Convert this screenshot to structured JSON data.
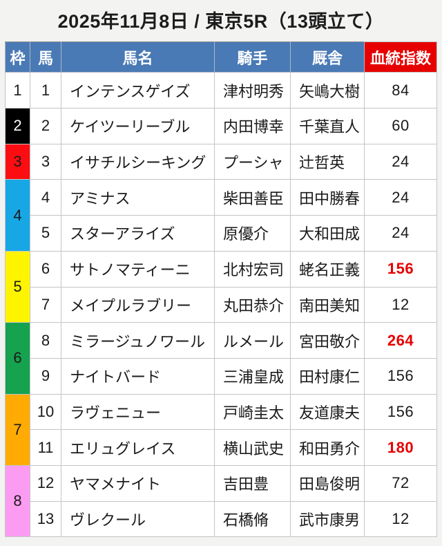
{
  "title": "2025年11月8日 / 東京5R（13頭立て）",
  "colors": {
    "page_background": "#F3F3F2",
    "header_blue": "#4A7AB5",
    "header_red": "#E60000",
    "index_column_yellow": "#FAFA8C",
    "index_highlight_red": "#E60000",
    "text_black": "#1A1A1A"
  },
  "table": {
    "headers": {
      "frame": "枠",
      "horse": "馬",
      "name": "馬名",
      "jockey": "騎手",
      "stable": "厩舎",
      "index": "血統指数"
    },
    "frames": [
      {
        "no": "1",
        "color": "#FFFFFF",
        "text_color": "#1A1A1A"
      },
      {
        "no": "2",
        "color": "#000000",
        "text_color": "#FFFFFF"
      },
      {
        "no": "3",
        "color": "#FC0D12",
        "text_color": "#1A1A1A"
      },
      {
        "no": "4",
        "color": "#17A7E5",
        "text_color": "#1A1A1A"
      },
      {
        "no": "5",
        "color": "#FEF400",
        "text_color": "#1A1A1A"
      },
      {
        "no": "6",
        "color": "#17A24F",
        "text_color": "#1A1A1A"
      },
      {
        "no": "7",
        "color": "#FFAB04",
        "text_color": "#1A1A1A"
      },
      {
        "no": "8",
        "color": "#FB9CF2",
        "text_color": "#1A1A1A"
      }
    ],
    "rows": [
      {
        "horse_no": "1",
        "name": "インテンスゲイズ",
        "jockey": "津村明秀",
        "stable": "矢嶋大樹",
        "index": "84",
        "index_color": "#1A1A1A",
        "index_weight": "normal"
      },
      {
        "horse_no": "2",
        "name": "ケイツーリーブル",
        "jockey": "内田博幸",
        "stable": "千葉直人",
        "index": "60",
        "index_color": "#1A1A1A",
        "index_weight": "normal"
      },
      {
        "horse_no": "3",
        "name": "イサチルシーキング",
        "jockey": "プーシャ",
        "stable": "辻哲英",
        "index": "24",
        "index_color": "#1A1A1A",
        "index_weight": "normal"
      },
      {
        "horse_no": "4",
        "name": "アミナス",
        "jockey": "柴田善臣",
        "stable": "田中勝春",
        "index": "24",
        "index_color": "#1A1A1A",
        "index_weight": "normal"
      },
      {
        "horse_no": "5",
        "name": "スターアライズ",
        "jockey": "原優介",
        "stable": "大和田成",
        "index": "24",
        "index_color": "#1A1A1A",
        "index_weight": "normal"
      },
      {
        "horse_no": "6",
        "name": "サトノマティーニ",
        "jockey": "北村宏司",
        "stable": "蛯名正義",
        "index": "156",
        "index_color": "#E60000",
        "index_weight": "bold"
      },
      {
        "horse_no": "7",
        "name": "メイプルラブリー",
        "jockey": "丸田恭介",
        "stable": "南田美知",
        "index": "12",
        "index_color": "#1A1A1A",
        "index_weight": "normal"
      },
      {
        "horse_no": "8",
        "name": "ミラージュノワール",
        "jockey": "ルメール",
        "stable": "宮田敬介",
        "index": "264",
        "index_color": "#E60000",
        "index_weight": "bold"
      },
      {
        "horse_no": "9",
        "name": "ナイトバード",
        "jockey": "三浦皇成",
        "stable": "田村康仁",
        "index": "156",
        "index_color": "#1A1A1A",
        "index_weight": "normal"
      },
      {
        "horse_no": "10",
        "name": "ラヴェニュー",
        "jockey": "戸崎圭太",
        "stable": "友道康夫",
        "index": "156",
        "index_color": "#1A1A1A",
        "index_weight": "normal"
      },
      {
        "horse_no": "11",
        "name": "エリュグレイス",
        "jockey": "横山武史",
        "stable": "和田勇介",
        "index": "180",
        "index_color": "#E60000",
        "index_weight": "bold"
      },
      {
        "horse_no": "12",
        "name": "ヤマメナイト",
        "jockey": "吉田豊",
        "stable": "田島俊明",
        "index": "72",
        "index_color": "#1A1A1A",
        "index_weight": "normal"
      },
      {
        "horse_no": "13",
        "name": "ヴレクール",
        "jockey": "石橋脩",
        "stable": "武市康男",
        "index": "12",
        "index_color": "#1A1A1A",
        "index_weight": "normal"
      }
    ]
  }
}
